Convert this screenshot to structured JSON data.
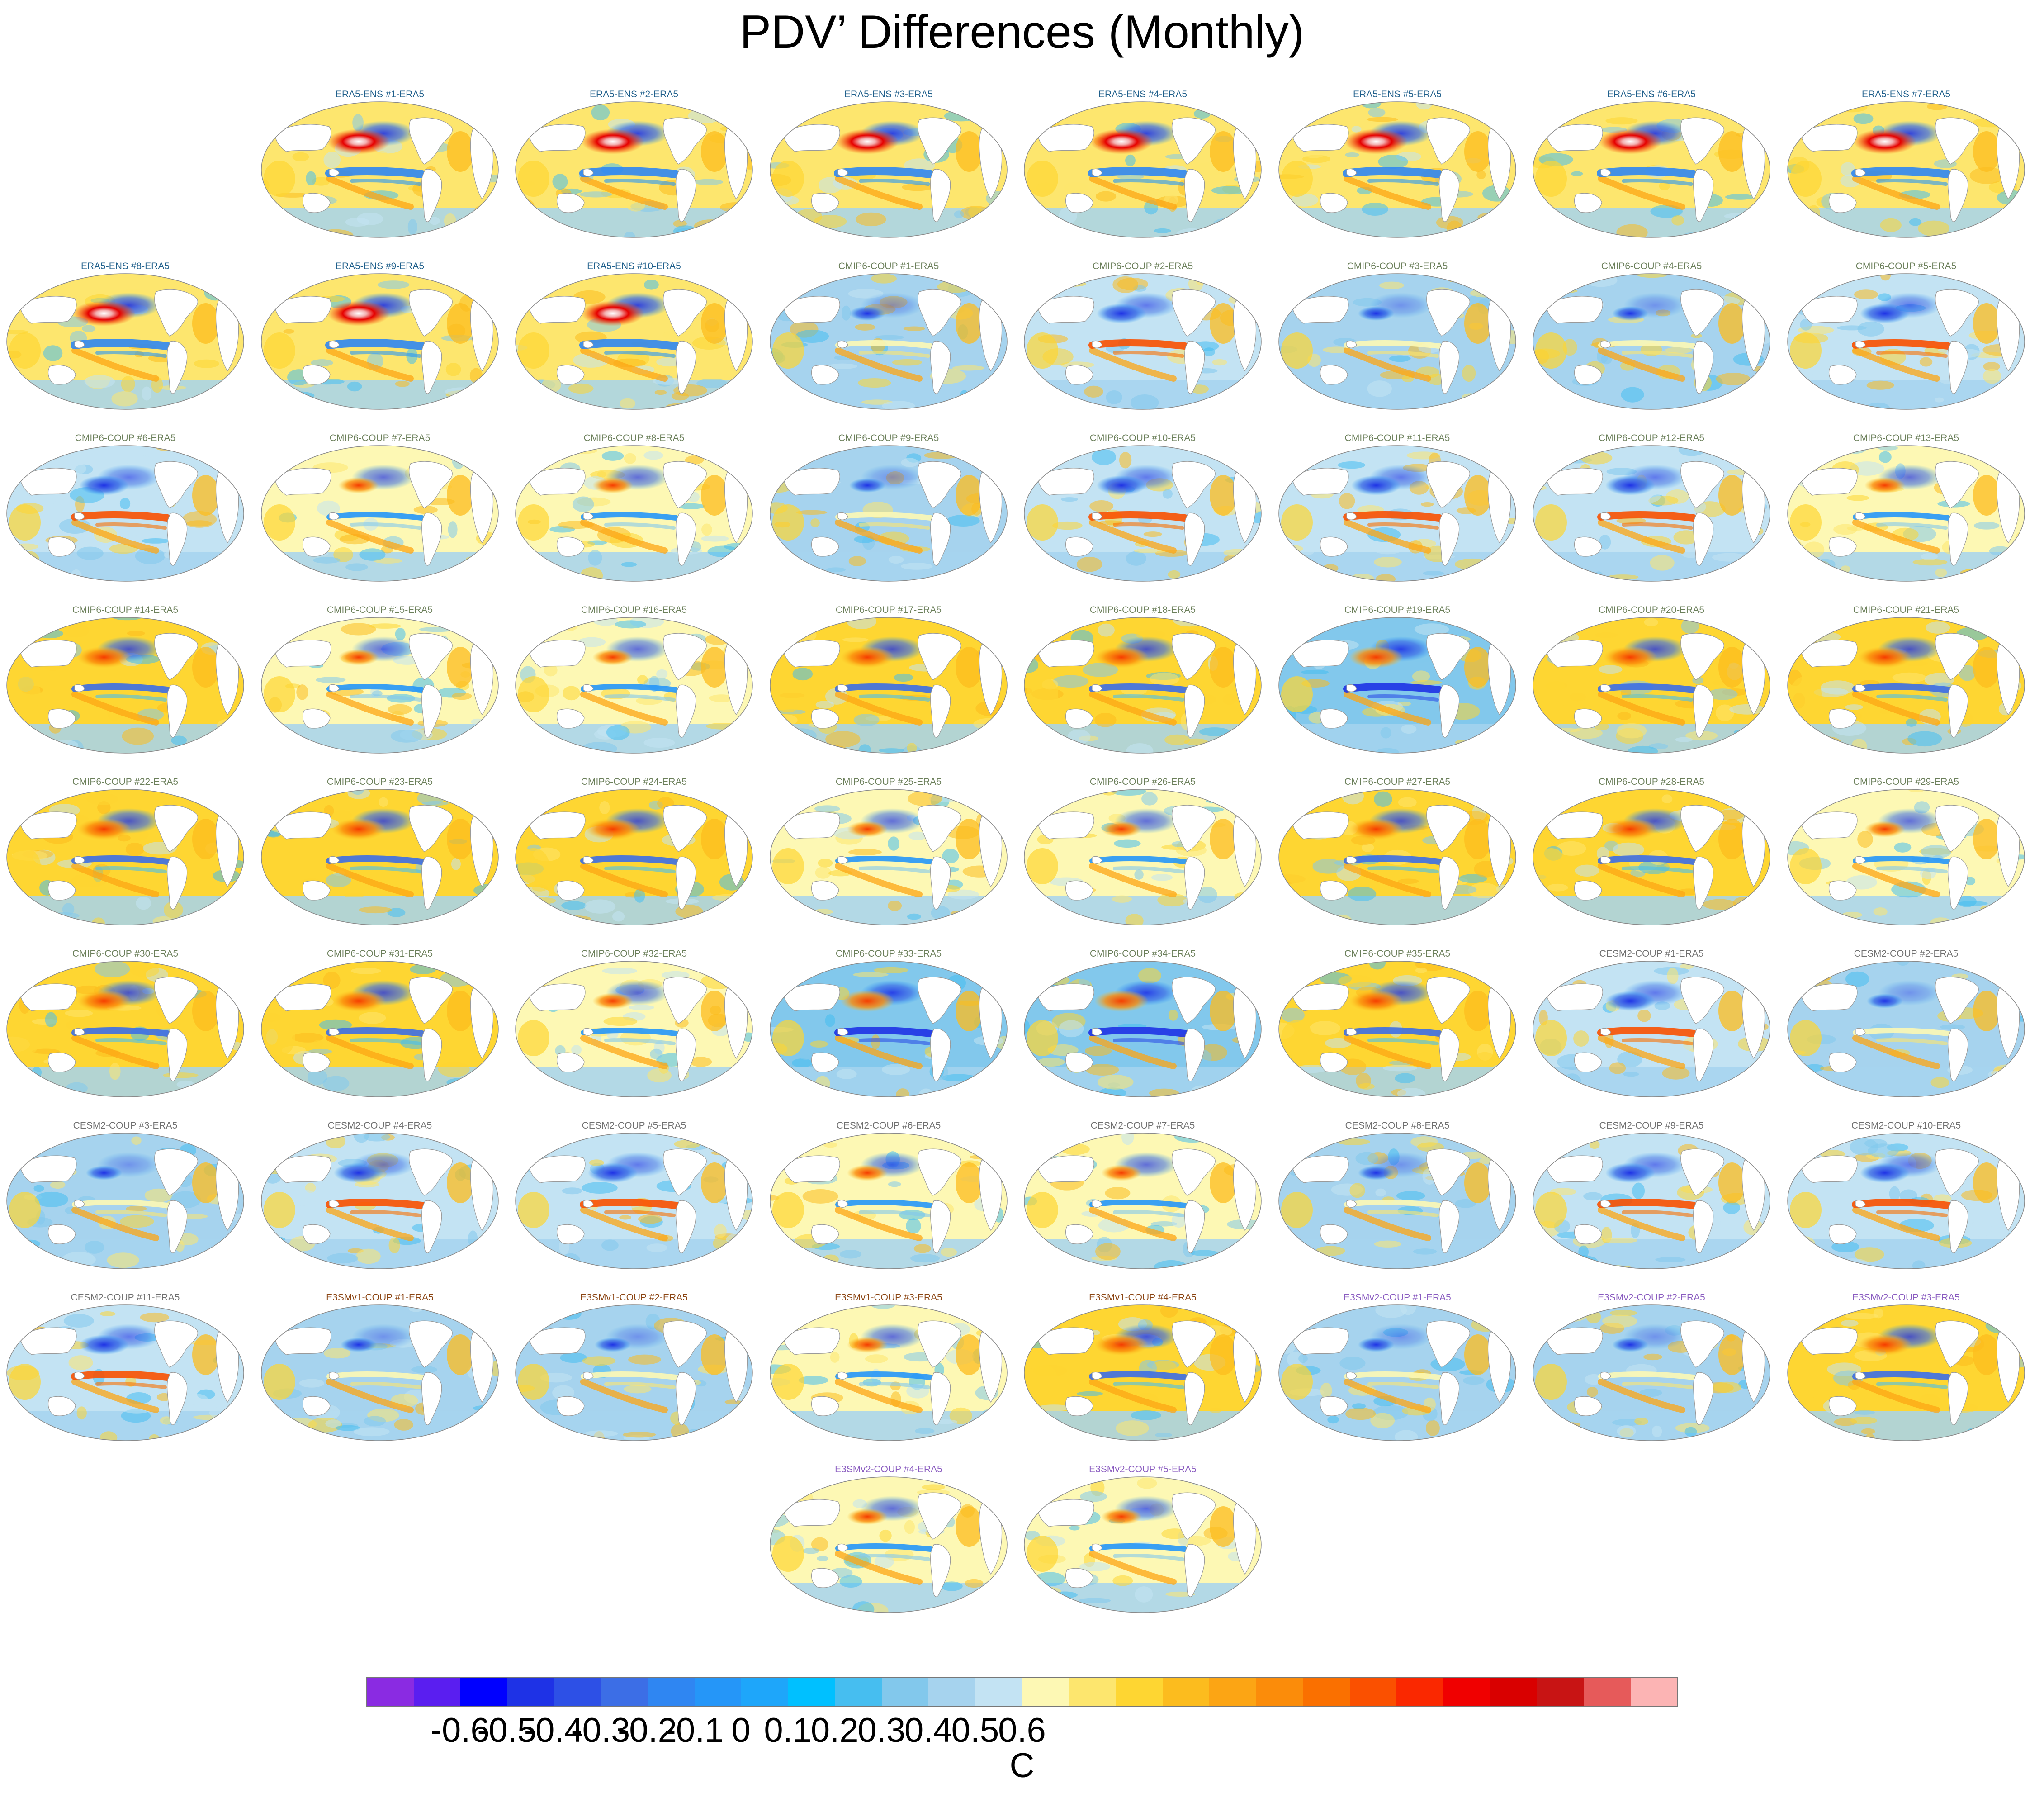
{
  "title": "PDV’ Differences (Monthly)",
  "colorbar": {
    "units": "C",
    "colors": [
      "#8a2be2",
      "#5a1ef0",
      "#0000ff",
      "#1e32e6",
      "#2d50e6",
      "#3c6ee6",
      "#2f86f2",
      "#2596f8",
      "#1ea6fa",
      "#00c0ff",
      "#46bef0",
      "#82c8ec",
      "#a6d3ee",
      "#c3e3f3",
      "#fdf8b4",
      "#fde66e",
      "#fed632",
      "#fcbc1e",
      "#fca514",
      "#fb8c0a",
      "#fa7000",
      "#fa5000",
      "#fa2800",
      "#f00000",
      "#d90000",
      "#c81414",
      "#e65a5a",
      "#fcb4b4"
    ],
    "ticks": [
      "-0.6",
      "-0.5",
      "-0.4",
      "-0.3",
      "-0.2",
      "-0.1",
      "0",
      "0.1",
      "0.2",
      "0.3",
      "0.4",
      "0.5",
      "0.6"
    ]
  },
  "label_colors": {
    "ERA5-ENS": "#1f5f8b",
    "CMIP6-COUP": "#6b7f5a",
    "CESM2-COUP": "#707070",
    "E3SMv1-COUP": "#8b4513",
    "E3SMv2-COUP": "#8a5cc0"
  },
  "panels": [
    {
      "label": "ERA5-ENS    #1-ERA5",
      "group": "ERA5-ENS",
      "style": "era"
    },
    {
      "label": "ERA5-ENS    #2-ERA5",
      "group": "ERA5-ENS",
      "style": "era"
    },
    {
      "label": "ERA5-ENS    #3-ERA5",
      "group": "ERA5-ENS",
      "style": "era"
    },
    {
      "label": "ERA5-ENS    #4-ERA5",
      "group": "ERA5-ENS",
      "style": "era"
    },
    {
      "label": "ERA5-ENS    #5-ERA5",
      "group": "ERA5-ENS",
      "style": "era"
    },
    {
      "label": "ERA5-ENS    #6-ERA5",
      "group": "ERA5-ENS",
      "style": "era"
    },
    {
      "label": "ERA5-ENS    #7-ERA5",
      "group": "ERA5-ENS",
      "style": "era"
    },
    {
      "label": "ERA5-ENS    #8-ERA5",
      "group": "ERA5-ENS",
      "style": "era"
    },
    {
      "label": "ERA5-ENS    #9-ERA5",
      "group": "ERA5-ENS",
      "style": "era"
    },
    {
      "label": "ERA5-ENS    #10-ERA5",
      "group": "ERA5-ENS",
      "style": "era"
    },
    {
      "label": "CMIP6-COUP  #1-ERA5",
      "group": "CMIP6-COUP",
      "style": "weak"
    },
    {
      "label": "CMIP6-COUP  #2-ERA5",
      "group": "CMIP6-COUP",
      "style": "enso_warm"
    },
    {
      "label": "CMIP6-COUP  #3-ERA5",
      "group": "CMIP6-COUP",
      "style": "weak"
    },
    {
      "label": "CMIP6-COUP  #4-ERA5",
      "group": "CMIP6-COUP",
      "style": "weak"
    },
    {
      "label": "CMIP6-COUP  #5-ERA5",
      "group": "CMIP6-COUP",
      "style": "enso_warm"
    },
    {
      "label": "CMIP6-COUP  #6-ERA5",
      "group": "CMIP6-COUP",
      "style": "enso_warm"
    },
    {
      "label": "CMIP6-COUP  #7-ERA5",
      "group": "CMIP6-COUP",
      "style": "mixed"
    },
    {
      "label": "CMIP6-COUP  #8-ERA5",
      "group": "CMIP6-COUP",
      "style": "mixed"
    },
    {
      "label": "CMIP6-COUP  #9-ERA5",
      "group": "CMIP6-COUP",
      "style": "weak"
    },
    {
      "label": "CMIP6-COUP  #10-ERA5",
      "group": "CMIP6-COUP",
      "style": "enso_warm"
    },
    {
      "label": "CMIP6-COUP  #11-ERA5",
      "group": "CMIP6-COUP",
      "style": "enso_warm"
    },
    {
      "label": "CMIP6-COUP  #12-ERA5",
      "group": "CMIP6-COUP",
      "style": "enso_warm"
    },
    {
      "label": "CMIP6-COUP  #13-ERA5",
      "group": "CMIP6-COUP",
      "style": "mixed"
    },
    {
      "label": "CMIP6-COUP  #14-ERA5",
      "group": "CMIP6-COUP",
      "style": "kuro_warm"
    },
    {
      "label": "CMIP6-COUP  #15-ERA5",
      "group": "CMIP6-COUP",
      "style": "mixed"
    },
    {
      "label": "CMIP6-COUP  #16-ERA5",
      "group": "CMIP6-COUP",
      "style": "mixed"
    },
    {
      "label": "CMIP6-COUP  #17-ERA5",
      "group": "CMIP6-COUP",
      "style": "kuro_warm"
    },
    {
      "label": "CMIP6-COUP  #18-ERA5",
      "group": "CMIP6-COUP",
      "style": "kuro_warm"
    },
    {
      "label": "CMIP6-COUP  #19-ERA5",
      "group": "CMIP6-COUP",
      "style": "cool"
    },
    {
      "label": "CMIP6-COUP  #20-ERA5",
      "group": "CMIP6-COUP",
      "style": "kuro_warm"
    },
    {
      "label": "CMIP6-COUP  #21-ERA5",
      "group": "CMIP6-COUP",
      "style": "kuro_warm"
    },
    {
      "label": "CMIP6-COUP  #22-ERA5",
      "group": "CMIP6-COUP",
      "style": "kuro_warm"
    },
    {
      "label": "CMIP6-COUP  #23-ERA5",
      "group": "CMIP6-COUP",
      "style": "kuro_warm"
    },
    {
      "label": "CMIP6-COUP  #24-ERA5",
      "group": "CMIP6-COUP",
      "style": "kuro_warm"
    },
    {
      "label": "CMIP6-COUP  #25-ERA5",
      "group": "CMIP6-COUP",
      "style": "mixed"
    },
    {
      "label": "CMIP6-COUP  #26-ERA5",
      "group": "CMIP6-COUP",
      "style": "mixed"
    },
    {
      "label": "CMIP6-COUP  #27-ERA5",
      "group": "CMIP6-COUP",
      "style": "kuro_warm"
    },
    {
      "label": "CMIP6-COUP  #28-ERA5",
      "group": "CMIP6-COUP",
      "style": "kuro_warm"
    },
    {
      "label": "CMIP6-COUP  #29-ERA5",
      "group": "CMIP6-COUP",
      "style": "mixed"
    },
    {
      "label": "CMIP6-COUP  #30-ERA5",
      "group": "CMIP6-COUP",
      "style": "kuro_warm"
    },
    {
      "label": "CMIP6-COUP  #31-ERA5",
      "group": "CMIP6-COUP",
      "style": "kuro_warm"
    },
    {
      "label": "CMIP6-COUP  #32-ERA5",
      "group": "CMIP6-COUP",
      "style": "mixed"
    },
    {
      "label": "CMIP6-COUP  #33-ERA5",
      "group": "CMIP6-COUP",
      "style": "cool"
    },
    {
      "label": "CMIP6-COUP  #34-ERA5",
      "group": "CMIP6-COUP",
      "style": "cool"
    },
    {
      "label": "CMIP6-COUP  #35-ERA5",
      "group": "CMIP6-COUP",
      "style": "kuro_warm"
    },
    {
      "label": "CESM2-COUP  #1-ERA5",
      "group": "CESM2-COUP",
      "style": "enso_warm"
    },
    {
      "label": "CESM2-COUP  #2-ERA5",
      "group": "CESM2-COUP",
      "style": "weak"
    },
    {
      "label": "CESM2-COUP  #3-ERA5",
      "group": "CESM2-COUP",
      "style": "weak"
    },
    {
      "label": "CESM2-COUP  #4-ERA5",
      "group": "CESM2-COUP",
      "style": "enso_warm"
    },
    {
      "label": "CESM2-COUP  #5-ERA5",
      "group": "CESM2-COUP",
      "style": "enso_warm"
    },
    {
      "label": "CESM2-COUP  #6-ERA5",
      "group": "CESM2-COUP",
      "style": "mixed"
    },
    {
      "label": "CESM2-COUP  #7-ERA5",
      "group": "CESM2-COUP",
      "style": "mixed"
    },
    {
      "label": "CESM2-COUP  #8-ERA5",
      "group": "CESM2-COUP",
      "style": "weak"
    },
    {
      "label": "CESM2-COUP  #9-ERA5",
      "group": "CESM2-COUP",
      "style": "enso_warm"
    },
    {
      "label": "CESM2-COUP  #10-ERA5",
      "group": "CESM2-COUP",
      "style": "enso_warm"
    },
    {
      "label": "CESM2-COUP  #11-ERA5",
      "group": "CESM2-COUP",
      "style": "enso_warm"
    },
    {
      "label": "E3SMv1-COUP #1-ERA5",
      "group": "E3SMv1-COUP",
      "style": "weak"
    },
    {
      "label": "E3SMv1-COUP #2-ERA5",
      "group": "E3SMv1-COUP",
      "style": "weak"
    },
    {
      "label": "E3SMv1-COUP #3-ERA5",
      "group": "E3SMv1-COUP",
      "style": "mixed"
    },
    {
      "label": "E3SMv1-COUP #4-ERA5",
      "group": "E3SMv1-COUP",
      "style": "kuro_warm"
    },
    {
      "label": "E3SMv2-COUP #1-ERA5",
      "group": "E3SMv2-COUP",
      "style": "weak"
    },
    {
      "label": "E3SMv2-COUP #2-ERA5",
      "group": "E3SMv2-COUP",
      "style": "weak"
    },
    {
      "label": "E3SMv2-COUP #3-ERA5",
      "group": "E3SMv2-COUP",
      "style": "kuro_warm"
    },
    {
      "label": "E3SMv2-COUP #4-ERA5",
      "group": "E3SMv2-COUP",
      "style": "mixed"
    },
    {
      "label": "E3SMv2-COUP #5-ERA5",
      "group": "E3SMv2-COUP",
      "style": "mixed"
    }
  ]
}
